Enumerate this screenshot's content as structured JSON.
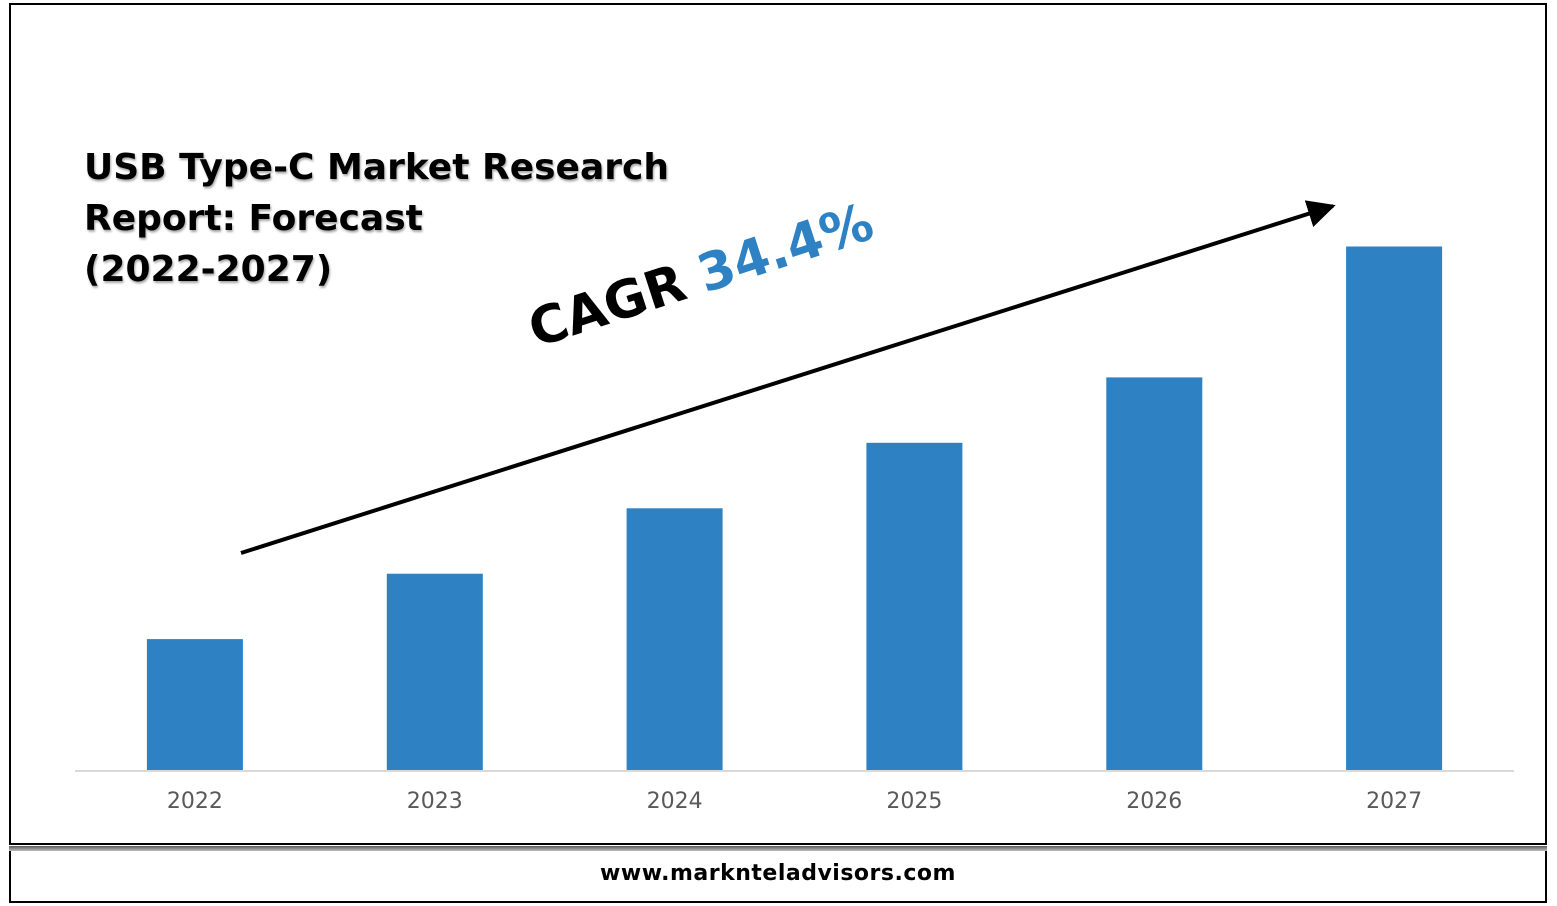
{
  "title_lines": [
    "USB Type-C Market Research",
    "Report: Forecast",
    "(2022-2027)"
  ],
  "cagr": {
    "label": "CAGR",
    "value": "34.4%"
  },
  "footer": {
    "url": "www.marknteladvisors.com"
  },
  "colors": {
    "bar": "#2e81c2",
    "axis": "#d9d9d9",
    "tick_text": "#595959",
    "cagr_value": "#2e81c2"
  },
  "chart_data": {
    "type": "bar",
    "categories": [
      "2022",
      "2023",
      "2024",
      "2025",
      "2026",
      "2027"
    ],
    "values": [
      1,
      1.5,
      2,
      2.5,
      3,
      4
    ],
    "ylim": [
      0,
      4.05
    ],
    "xlabel": "",
    "ylabel": "",
    "grid": false,
    "legend": "none",
    "annotations": [
      "CAGR 34.4%"
    ]
  }
}
